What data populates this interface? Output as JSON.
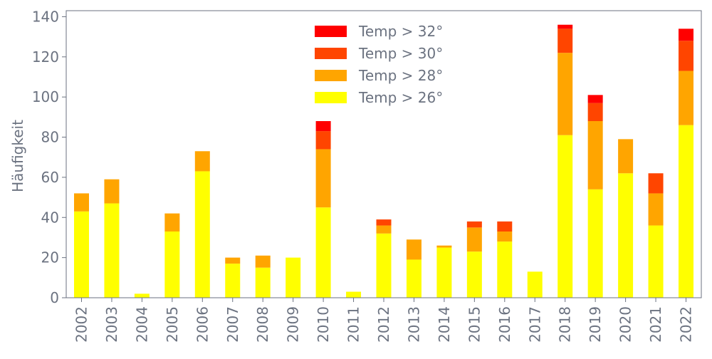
{
  "chart_data": {
    "type": "bar",
    "stacked": true,
    "title": "",
    "xlabel": "",
    "ylabel": "Häufigkeit",
    "ylim": [
      0,
      143
    ],
    "yticks": [
      0,
      20,
      40,
      60,
      80,
      100,
      120,
      140
    ],
    "grid": false,
    "legend_position": "top-center",
    "categories": [
      "2002",
      "2003",
      "2004",
      "2005",
      "2006",
      "2007",
      "2008",
      "2009",
      "2010",
      "2011",
      "2012",
      "2013",
      "2014",
      "2015",
      "2016",
      "2017",
      "2018",
      "2019",
      "2020",
      "2021",
      "2022"
    ],
    "series": [
      {
        "name": "Temp > 26°",
        "color": "#ffff00",
        "values": [
          43,
          47,
          2,
          33,
          63,
          17,
          15,
          20,
          45,
          3,
          32,
          19,
          25,
          23,
          28,
          13,
          81,
          54,
          62,
          36,
          86
        ]
      },
      {
        "name": "Temp > 28°",
        "color": "#ffa500",
        "values": [
          9,
          12,
          0,
          9,
          10,
          3,
          6,
          0,
          29,
          0,
          4,
          10,
          1,
          12,
          5,
          0,
          41,
          34,
          17,
          16,
          27
        ]
      },
      {
        "name": "Temp > 30°",
        "color": "#ff4500",
        "values": [
          0,
          0,
          0,
          0,
          0,
          0,
          0,
          0,
          9,
          0,
          3,
          0,
          0,
          3,
          5,
          0,
          12,
          9,
          0,
          10,
          15
        ]
      },
      {
        "name": "Temp > 32°",
        "color": "#ff0000",
        "values": [
          0,
          0,
          0,
          0,
          0,
          0,
          0,
          0,
          5,
          0,
          0,
          0,
          0,
          0,
          0,
          0,
          2,
          4,
          0,
          0,
          6
        ]
      }
    ],
    "legend_order": [
      "Temp > 32°",
      "Temp > 30°",
      "Temp > 28°",
      "Temp > 26°"
    ]
  }
}
